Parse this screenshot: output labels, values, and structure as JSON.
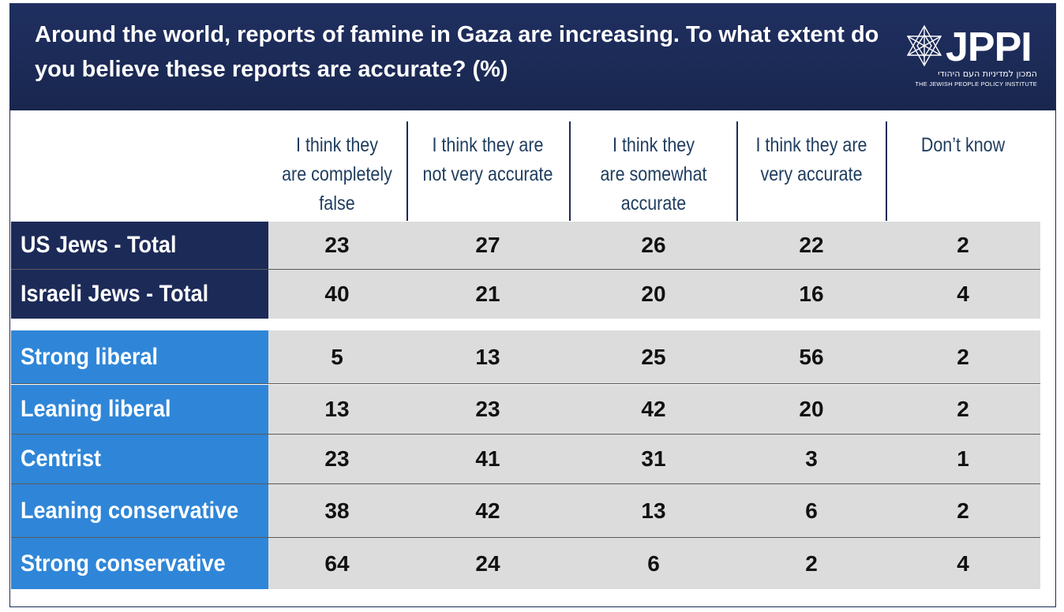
{
  "title": "Around the world, reports of famine in Gaza are increasing. To what extent do you believe these reports are accurate? (%)",
  "logo": {
    "name": "JPPI",
    "hebrew": "המכון למדיניות העם היהודי",
    "english": "THE JEWISH PEOPLE POLICY INSTITUTE"
  },
  "colors": {
    "header": "#1c2a58",
    "group_label": "#2f86d8",
    "cell_bg": "#dcdcdc",
    "column_header_text": "#1e3c5e"
  },
  "chart_data": {
    "type": "table",
    "title": "Around the world, reports of famine in Gaza are increasing. To what extent do you believe these reports are accurate? (%)",
    "columns": [
      "I think they are completely false",
      "I think they are not very accurate",
      "I think they are somewhat accurate",
      "I think they are very accurate",
      "Don’t know"
    ],
    "column_lines": [
      [
        "I think they",
        "are completely",
        "false"
      ],
      [
        "I think they are",
        "not very accurate"
      ],
      [
        "I think they",
        "are somewhat",
        "accurate"
      ],
      [
        "I think they are",
        "very accurate"
      ],
      [
        "Don’t know"
      ]
    ],
    "rows": [
      {
        "label": "US Jews - Total",
        "values": [
          23,
          27,
          26,
          22,
          2
        ]
      },
      {
        "label": "Israeli Jews - Total",
        "values": [
          40,
          21,
          20,
          16,
          4
        ]
      },
      {
        "label": "Strong liberal",
        "values": [
          5,
          13,
          25,
          56,
          2
        ]
      },
      {
        "label": "Leaning liberal",
        "values": [
          13,
          23,
          42,
          20,
          2
        ]
      },
      {
        "label": "Centrist",
        "values": [
          23,
          41,
          31,
          3,
          1
        ]
      },
      {
        "label": "Leaning conservative",
        "values": [
          38,
          42,
          13,
          6,
          2
        ]
      },
      {
        "label": "Strong conservative",
        "values": [
          64,
          24,
          6,
          2,
          4
        ]
      }
    ]
  }
}
